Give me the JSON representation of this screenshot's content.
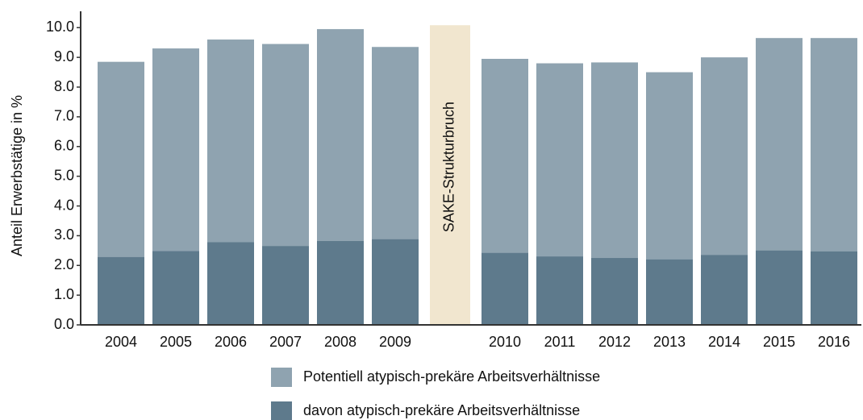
{
  "chart_data": {
    "type": "bar",
    "y_label": "Anteil Erwerbstätige in %",
    "annotation": "SAKE-Strukturbruch",
    "categories": [
      "2004",
      "2005",
      "2006",
      "2007",
      "2008",
      "2009",
      null,
      "2010",
      "2011",
      "2012",
      "2013",
      "2014",
      "2015",
      "2016"
    ],
    "series": [
      {
        "name": "Potentiell atypisch-prekäre Arbeitsverhältnisse",
        "color": "#8fa3b0",
        "values": [
          8.85,
          9.3,
          9.6,
          9.45,
          9.95,
          9.35,
          null,
          8.95,
          8.8,
          8.83,
          8.5,
          9.0,
          9.65,
          9.65
        ]
      },
      {
        "name": "davon atypisch-prekäre Arbeitsverhältnisse",
        "color": "#5e7a8c",
        "values": [
          2.28,
          2.48,
          2.78,
          2.65,
          2.82,
          2.88,
          null,
          2.42,
          2.3,
          2.25,
          2.2,
          2.35,
          2.5,
          2.47
        ]
      }
    ],
    "annotation_color": "#f1e6cf",
    "ylim": [
      0,
      10.55
    ],
    "yticks": [
      {
        "value": 0,
        "label": "0.0"
      },
      {
        "value": 1,
        "label": "1.0"
      },
      {
        "value": 2,
        "label": "2.0"
      },
      {
        "value": 3,
        "label": "3.0"
      },
      {
        "value": 4,
        "label": "4.0"
      },
      {
        "value": 5,
        "label": "5.0"
      },
      {
        "value": 6,
        "label": "6.0"
      },
      {
        "value": 7,
        "label": "7.0"
      },
      {
        "value": 8,
        "label": "8.0"
      },
      {
        "value": 9,
        "label": "9.0"
      },
      {
        "value": 10,
        "label": "10.0"
      }
    ]
  }
}
